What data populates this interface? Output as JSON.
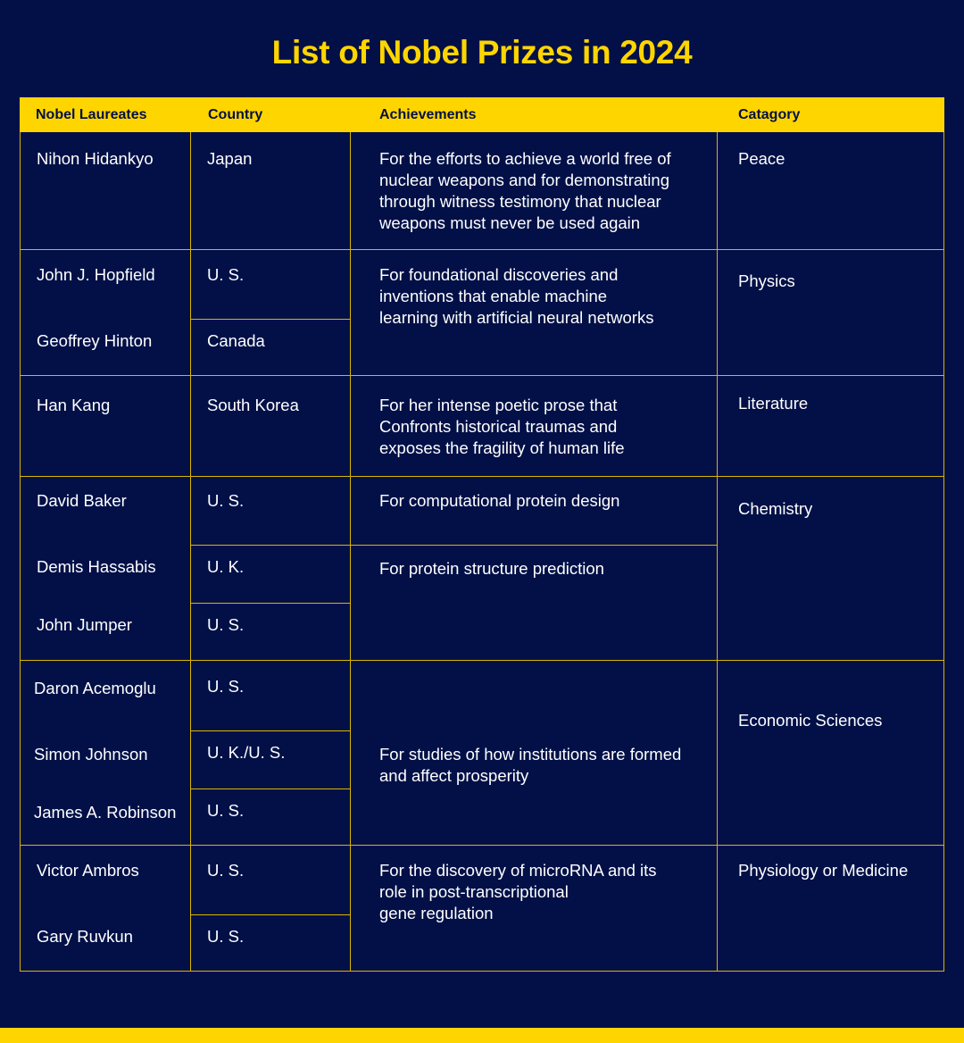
{
  "title": "List of Nobel Prizes in 2024",
  "columns": {
    "laureates": "Nobel Laureates",
    "country": "Country",
    "achievements": "Achievements",
    "category": "Catagory"
  },
  "rows": {
    "peace": {
      "laureates": [
        "Nihon Hidankyo"
      ],
      "countries": [
        "Japan"
      ],
      "achievement": "For the efforts to achieve a world free of\nnuclear weapons and for demonstrating\nthrough witness testimony that nuclear\nweapons must never be used again",
      "category": "Peace"
    },
    "physics": {
      "laureates": [
        "John J. Hopfield",
        "Geoffrey Hinton"
      ],
      "countries": [
        "U. S.",
        "Canada"
      ],
      "achievement": "For foundational discoveries and\ninventions that enable machine\nlearning with artificial neural networks",
      "category": "Physics"
    },
    "literature": {
      "laureates": [
        "Han Kang"
      ],
      "countries": [
        "South Korea"
      ],
      "achievement": "For her intense poetic prose that\nConfronts historical traumas and\nexposes the fragility of human life",
      "category": "Literature"
    },
    "chemistry": {
      "laureates": [
        "David Baker",
        "Demis Hassabis",
        "John Jumper"
      ],
      "countries": [
        "U. S.",
        "U. K.",
        "U. S."
      ],
      "achievements": [
        "For computational protein design",
        "For protein structure prediction"
      ],
      "category": "Chemistry"
    },
    "economics": {
      "laureates": [
        "Daron Acemoglu",
        "Simon Johnson",
        "James A. Robinson"
      ],
      "countries": [
        "U. S.",
        "U. K./U. S.",
        "U. S."
      ],
      "achievement": "For studies of how institutions are formed\nand affect prosperity",
      "category": "Economic Sciences"
    },
    "medicine": {
      "laureates": [
        "Victor Ambros",
        "Gary Ruvkun"
      ],
      "countries": [
        "U. S.",
        "U. S."
      ],
      "achievement": "For the discovery of microRNA and its\nrole in post-transcriptional\ngene regulation",
      "category": "Physiology or Medicine"
    }
  },
  "colors": {
    "background": "#021047",
    "accent": "#FFD500",
    "text": "#FFFFFF"
  }
}
